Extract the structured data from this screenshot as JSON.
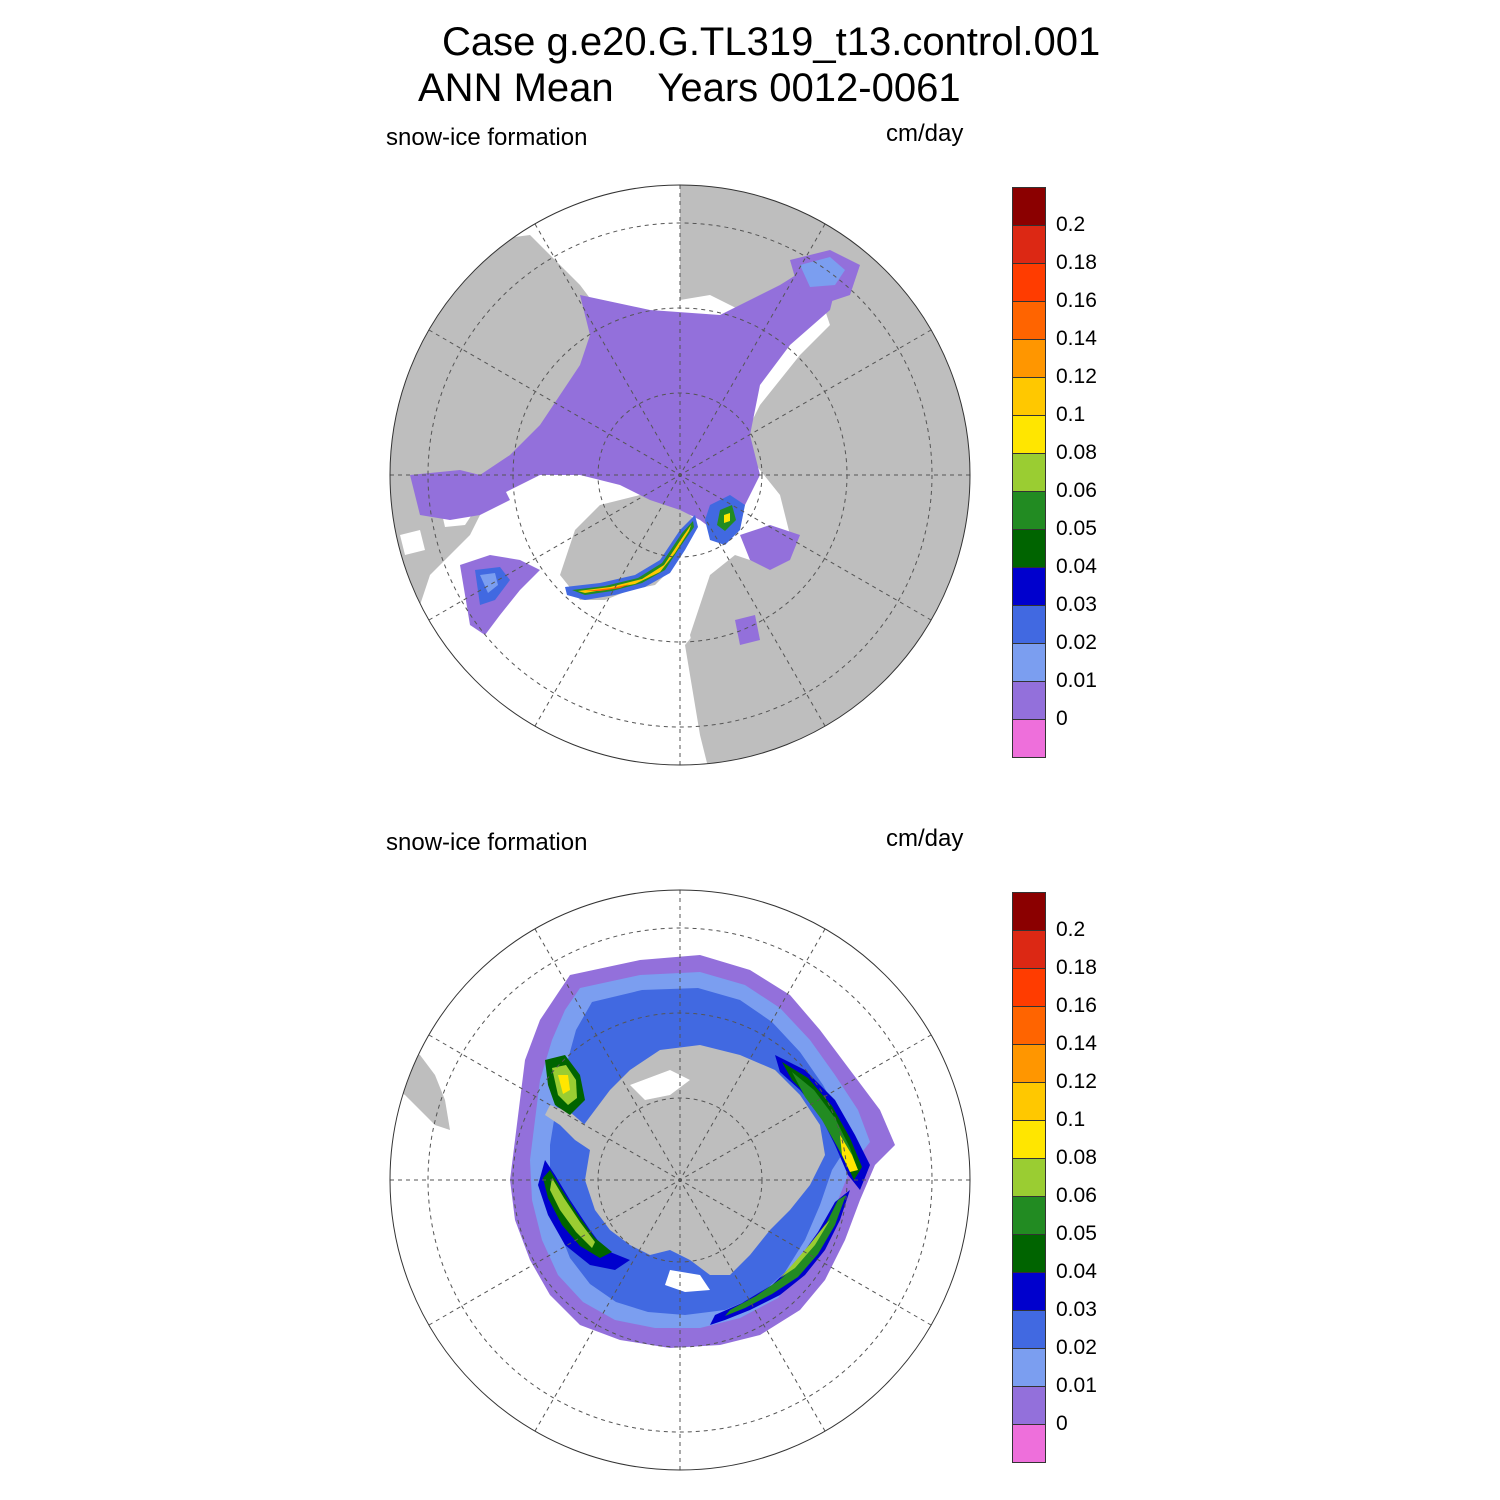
{
  "figure": {
    "title_line1": "Case g.e20.G.TL319_t13.control.001",
    "title_line2": "ANN Mean    Years 0012-0061"
  },
  "panels": [
    {
      "id": "nh",
      "label": "snow-ice formation",
      "units": "cm/day",
      "hemisphere": "Northern Hemisphere (polar stereographic, north pole at center)",
      "map_colors": {
        "land": "#bebebe",
        "ocean_no_ice": "#ffffff",
        "graticule": "#555555"
      },
      "regions": [
        {
          "name": "arctic-basin",
          "level": "0-0.01"
        },
        {
          "name": "hudson-bay-archipelago",
          "level": "0-0.01"
        },
        {
          "name": "kara-barents-sea",
          "level": "0-0.01"
        },
        {
          "name": "east-greenland-coast",
          "level": "0.04-0.12"
        },
        {
          "name": "labrador-baffin-shelf",
          "level": "0.01-0.04"
        },
        {
          "name": "svalbard-fram-strait",
          "level": "0.03-0.06"
        }
      ]
    },
    {
      "id": "sh",
      "label": "snow-ice formation",
      "units": "cm/day",
      "hemisphere": "Southern Hemisphere (polar stereographic, south pole at center)",
      "map_colors": {
        "land": "#bebebe",
        "ocean_no_ice": "#ffffff",
        "graticule": "#555555"
      },
      "regions": [
        {
          "name": "outer-ice-edge",
          "level": "0-0.01"
        },
        {
          "name": "pack-ice-belt",
          "level": "0.01-0.03"
        },
        {
          "name": "weddell-sea-band",
          "level": "0.04-0.08"
        },
        {
          "name": "ross-amundsen-band",
          "level": "0.04-0.08"
        },
        {
          "name": "indian-ocean-sector",
          "level": "0.04-0.08"
        }
      ]
    }
  ],
  "colorbar": {
    "labels": [
      "0.2",
      "0.18",
      "0.16",
      "0.14",
      "0.12",
      "0.1",
      "0.08",
      "0.06",
      "0.05",
      "0.04",
      "0.03",
      "0.02",
      "0.01",
      "0"
    ],
    "colors": [
      "#8b0000",
      "#dc2814",
      "#ff3c00",
      "#ff6400",
      "#ff9600",
      "#ffc800",
      "#ffe600",
      "#9acd32",
      "#228b22",
      "#006400",
      "#0000cd",
      "#4169e1",
      "#7b9ef0",
      "#9370db",
      "#ee6fdb"
    ]
  }
}
